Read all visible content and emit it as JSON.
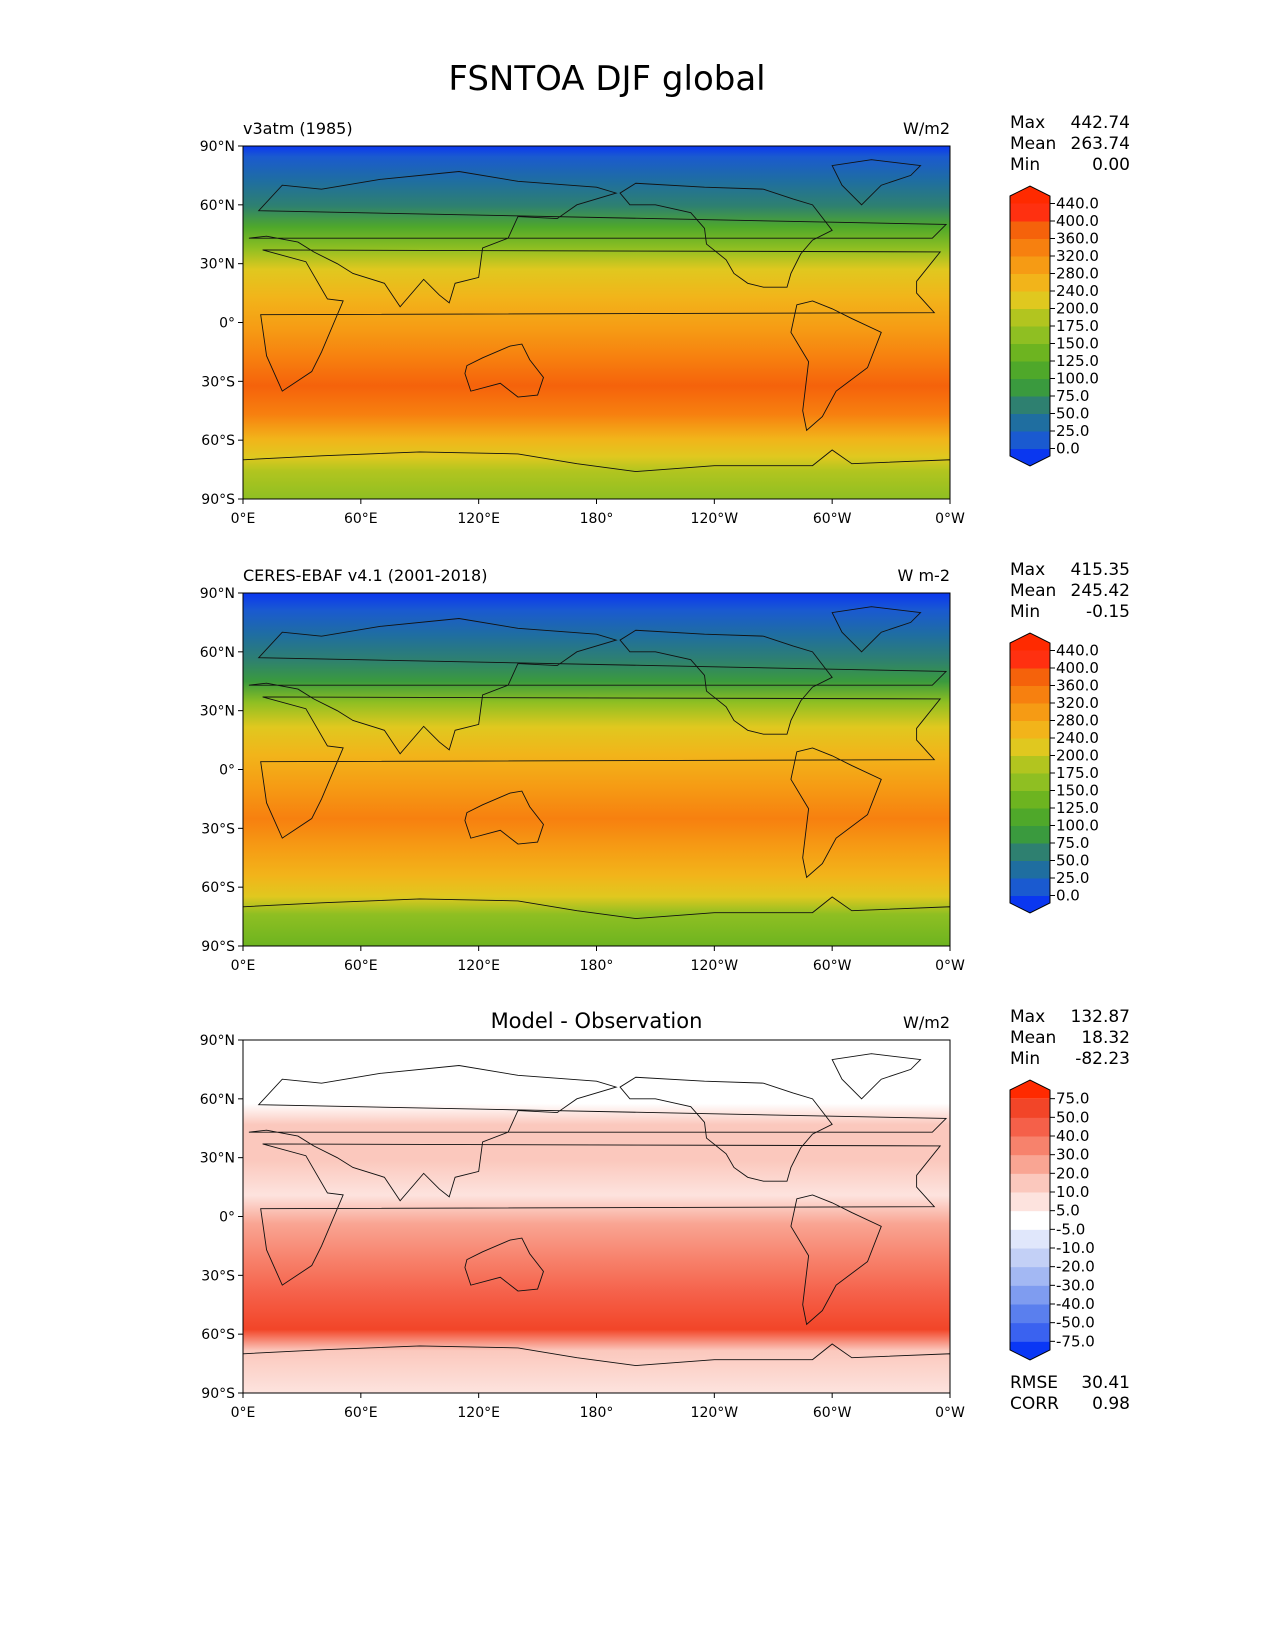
{
  "figure": {
    "title": "FSNTOA DJF global"
  },
  "lon_ticks": [
    "0°E",
    "60°E",
    "120°E",
    "180°",
    "120°W",
    "60°W",
    "0°W"
  ],
  "lat_ticks": [
    "90°N",
    "60°N",
    "30°N",
    "0°",
    "30°S",
    "60°S",
    "90°S"
  ],
  "chart_data": [
    {
      "type": "heatmap",
      "panel": "model",
      "left_title": "v3atm (1985)",
      "center_title": "",
      "units": "W/m2",
      "stats": [
        {
          "label": "Max",
          "value": "442.74"
        },
        {
          "label": "Mean",
          "value": "263.74"
        },
        {
          "label": "Min",
          "value": "0.00"
        }
      ],
      "colorbar": {
        "levels": [
          "0.0",
          "25.0",
          "50.0",
          "75.0",
          "100.0",
          "125.0",
          "150.0",
          "175.0",
          "200.0",
          "240.0",
          "280.0",
          "320.0",
          "360.0",
          "400.0",
          "440.0"
        ],
        "colors": [
          "#0a37f0",
          "#1a5ad0",
          "#1f6ea0",
          "#2e8070",
          "#3a9a3e",
          "#4fa82a",
          "#6db420",
          "#8fbf22",
          "#b2c51f",
          "#e0c81f",
          "#f2b41a",
          "#f69b14",
          "#f7800f",
          "#f5620b",
          "#ff3010",
          "#ff2a00"
        ]
      },
      "x_range": [
        "0°E",
        "0°W"
      ],
      "y_range": [
        "90°S",
        "90°N"
      ]
    },
    {
      "type": "heatmap",
      "panel": "observation",
      "left_title": "CERES-EBAF v4.1 (2001-2018)",
      "center_title": "",
      "units": "W m-2",
      "stats": [
        {
          "label": "Max",
          "value": "415.35"
        },
        {
          "label": "Mean",
          "value": "245.42"
        },
        {
          "label": "Min",
          "value": "-0.15"
        }
      ],
      "colorbar": {
        "levels": [
          "0.0",
          "25.0",
          "50.0",
          "75.0",
          "100.0",
          "125.0",
          "150.0",
          "175.0",
          "200.0",
          "240.0",
          "280.0",
          "320.0",
          "360.0",
          "400.0",
          "440.0"
        ],
        "colors": [
          "#0a37f0",
          "#1a5ad0",
          "#1f6ea0",
          "#2e8070",
          "#3a9a3e",
          "#4fa82a",
          "#6db420",
          "#8fbf22",
          "#b2c51f",
          "#e0c81f",
          "#f2b41a",
          "#f69b14",
          "#f7800f",
          "#f5620b",
          "#ff3010",
          "#ff2a00"
        ]
      },
      "x_range": [
        "0°E",
        "0°W"
      ],
      "y_range": [
        "90°S",
        "90°N"
      ]
    },
    {
      "type": "heatmap",
      "panel": "difference",
      "left_title": "",
      "center_title": "Model - Observation",
      "units": "W/m2",
      "stats": [
        {
          "label": "Max",
          "value": "132.87"
        },
        {
          "label": "Mean",
          "value": "18.32"
        },
        {
          "label": "Min",
          "value": "-82.23"
        }
      ],
      "extra_stats": [
        {
          "label": "RMSE",
          "value": "30.41"
        },
        {
          "label": "CORR",
          "value": "0.98"
        }
      ],
      "colorbar": {
        "levels": [
          "-75.0",
          "-50.0",
          "-40.0",
          "-30.0",
          "-20.0",
          "-10.0",
          "-5.0",
          "5.0",
          "10.0",
          "20.0",
          "30.0",
          "40.0",
          "50.0",
          "75.0"
        ],
        "colors": [
          "#0a37f5",
          "#3a62f0",
          "#5a7fee",
          "#7f9cf0",
          "#a3b8f3",
          "#c3d0f6",
          "#e0e7fb",
          "#ffffff",
          "#fde3de",
          "#fbc8bd",
          "#f9a593",
          "#f7826c",
          "#f56049",
          "#f24528",
          "#ff2a00"
        ]
      },
      "x_range": [
        "0°E",
        "0°W"
      ],
      "y_range": [
        "90°S",
        "90°N"
      ]
    }
  ]
}
